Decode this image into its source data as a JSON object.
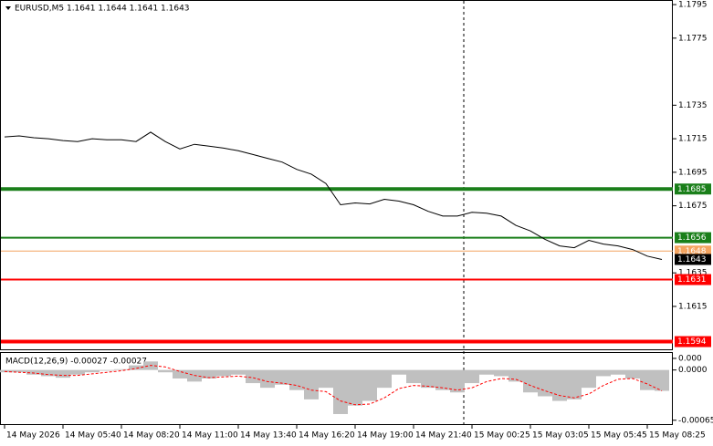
{
  "chart_data": [
    {
      "type": "price",
      "title": "EURUSD,M5  1.1641 1.1644 1.1641 1.1643",
      "x": [
        "14 May 2026",
        null,
        null,
        null,
        "14 May 05:40",
        null,
        null,
        null,
        "14 May 08:20",
        null,
        null,
        null,
        "14 May 11:00",
        null,
        null,
        null,
        "14 May 13:40",
        null,
        null,
        null,
        "14 May 16:20",
        null,
        null,
        null,
        "14 May 19:00",
        null,
        null,
        null,
        "14 May 21:40",
        null,
        null,
        null,
        "15 May 00:25",
        null,
        null,
        null,
        "15 May 03:05",
        null,
        null,
        null,
        "15 May 05:45",
        null,
        null,
        null,
        "15 May 08:25",
        null
      ],
      "values": [
        1.17161,
        1.17167,
        1.17156,
        1.1715,
        1.17139,
        1.17133,
        1.1715,
        1.17144,
        1.17144,
        1.17133,
        1.17189,
        1.17133,
        1.17089,
        1.17117,
        1.17106,
        1.17094,
        1.17078,
        1.17056,
        1.17033,
        1.17011,
        1.16967,
        1.16939,
        1.16883,
        1.16756,
        1.16767,
        1.16761,
        1.16789,
        1.16778,
        1.16756,
        1.16717,
        1.16689,
        1.16689,
        1.16711,
        1.16706,
        1.16689,
        1.16633,
        1.166,
        1.1655,
        1.16511,
        1.165,
        1.16544,
        1.16522,
        1.16511,
        1.16489,
        1.1645,
        1.1643
      ],
      "color": "#000000",
      "levels": [
        {
          "value": 1.1685,
          "color": "#1a7f1a",
          "width": 4
        },
        {
          "value": 1.1656,
          "color": "#1a7f1a",
          "width": 2
        },
        {
          "value": 1.1648,
          "color": "#f4a460",
          "width": 1
        },
        {
          "value": 1.1643,
          "color": "#000000",
          "width": 0
        },
        {
          "value": 1.1631,
          "color": "#ff0000",
          "width": 2
        },
        {
          "value": 1.1594,
          "color": "#ff0000",
          "width": 4
        }
      ],
      "ylim": [
        1.15894,
        1.17972
      ],
      "yticks": [
        1.1795,
        1.1775,
        1.1735,
        1.1715,
        1.1695,
        1.1675,
        1.1635,
        1.1615
      ]
    },
    {
      "type": "macd",
      "title": "MACD(12,26,9) -0.00027 -0.00027",
      "histogram": [
        -3e-05,
        -3e-05,
        -6e-05,
        -8e-05,
        -0.0001,
        -6e-05,
        -3e-05,
        -1e-05,
        1e-05,
        6e-05,
        0.00011,
        -3e-05,
        -0.00011,
        -0.00015,
        -0.00011,
        -8e-05,
        -6e-05,
        -0.00017,
        -0.00023,
        -0.00019,
        -0.00026,
        -0.00038,
        -0.00023,
        -0.00057,
        -0.00046,
        -0.0004,
        -0.00023,
        -6e-05,
        -0.00017,
        -0.00023,
        -0.00026,
        -0.00029,
        -0.00017,
        -6e-05,
        -8e-05,
        -0.00015,
        -0.00029,
        -0.00034,
        -0.0004,
        -0.00038,
        -0.00023,
        -8e-05,
        -6e-05,
        -0.00011,
        -0.00026,
        -0.00027
      ],
      "signal": [
        -2e-05,
        -3e-05,
        -4e-05,
        -6e-05,
        -7e-05,
        -7e-05,
        -5e-05,
        -3e-05,
        -1e-05,
        2e-05,
        6e-05,
        4e-05,
        -2e-05,
        -7e-05,
        -0.0001,
        -9e-05,
        -8e-05,
        -0.0001,
        -0.00015,
        -0.00017,
        -0.0002,
        -0.00026,
        -0.00028,
        -0.0004,
        -0.00045,
        -0.00044,
        -0.00036,
        -0.00024,
        -0.0002,
        -0.00021,
        -0.00023,
        -0.00026,
        -0.00023,
        -0.00015,
        -0.00011,
        -0.00012,
        -0.0002,
        -0.00027,
        -0.00033,
        -0.00036,
        -0.00031,
        -0.0002,
        -0.00012,
        -0.00011,
        -0.00018,
        -0.00027
      ],
      "histogram_color": "#c0c0c0",
      "signal_color": "#ff0000",
      "ylim": [
        -0.0007,
        0.00022
      ],
      "yticks": [
        {
          "value": 0.00015,
          "label": "0.000"
        },
        {
          "value": 0,
          "label": "0.0000"
        },
        {
          "value": -0.00065,
          "label": "-0.00065"
        }
      ]
    }
  ]
}
